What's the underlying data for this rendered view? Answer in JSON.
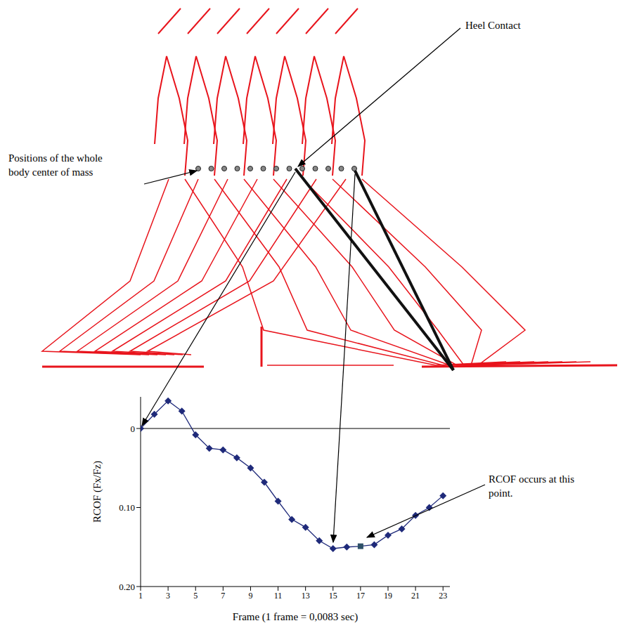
{
  "chart_data": {
    "type": "line",
    "x_label": "Frame (1 frame = 0,0083 sec)",
    "y_label": "RCOF (Fx/Fz)",
    "x": [
      1,
      2,
      3,
      4,
      5,
      6,
      7,
      8,
      9,
      10,
      11,
      12,
      13,
      14,
      15,
      16,
      17,
      18,
      19,
      20,
      21,
      22,
      23
    ],
    "values": [
      0,
      -0.018,
      -0.035,
      -0.022,
      0.008,
      0.025,
      0.027,
      0.037,
      0.05,
      0.068,
      0.092,
      0.115,
      0.125,
      0.142,
      0.152,
      0.15,
      0.149,
      0.147,
      0.135,
      0.127,
      0.11,
      0.1,
      0.085
    ],
    "color": "#1f2a7a",
    "marker": "diamond",
    "line_style": "solid",
    "grid": false,
    "xlim": [
      1,
      23.5
    ],
    "xticks": [
      1,
      3,
      5,
      7,
      9,
      11,
      13,
      15,
      17,
      19,
      21,
      23
    ],
    "ylim": [
      0.2,
      -0.04
    ],
    "yticks": [
      0,
      {
        "value": 0.1,
        "label": "0.10"
      },
      {
        "value": 0.2,
        "label": "0.20"
      }
    ],
    "annotations": [
      {
        "text": "Positions of the whole body center of mass"
      },
      {
        "text": "Heel Contact",
        "x": 1
      },
      {
        "text": "RCOF occurs at this point.",
        "x": 17
      }
    ]
  }
}
